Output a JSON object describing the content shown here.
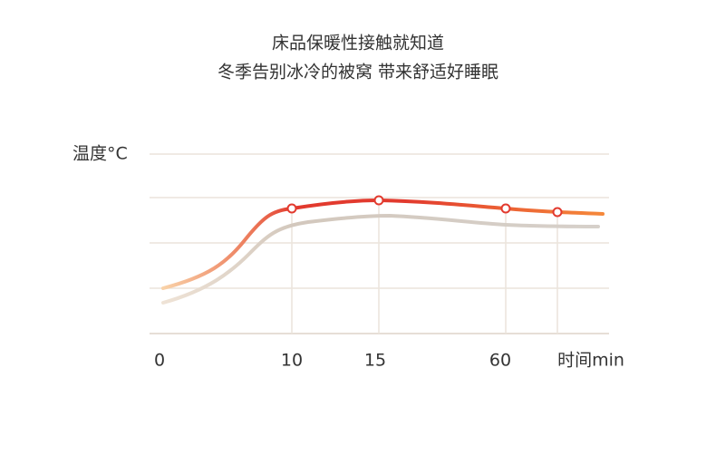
{
  "header": {
    "title": "床品保暖性接触就知道",
    "subtitle": "冬季告别冰冷的被窝 带来舒适好睡眠"
  },
  "axis": {
    "y_label": "温度°C",
    "x_labels": [
      "0",
      "10",
      "15",
      "60",
      "时间min"
    ]
  }
}
